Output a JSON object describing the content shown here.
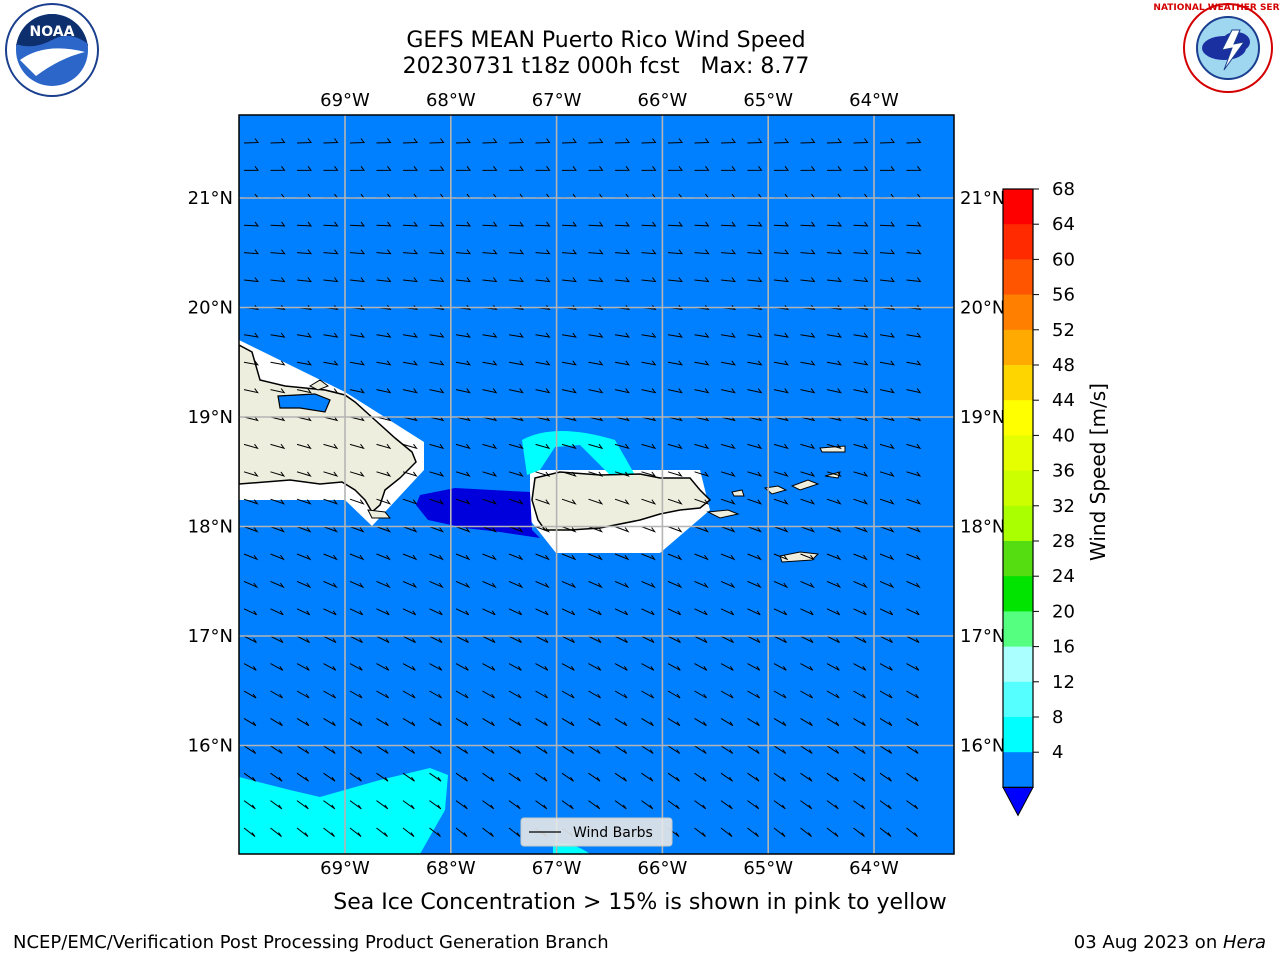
{
  "title": {
    "line1": "GEFS MEAN Puerto Rico Wind Speed",
    "line2": "20230731 t18z 000h fcst   Max: 8.77"
  },
  "map": {
    "lon_labels": [
      "69°W",
      "68°W",
      "67°W",
      "66°W",
      "65°W",
      "64°W"
    ],
    "lat_labels": [
      "21°N",
      "20°N",
      "19°N",
      "18°N",
      "17°N",
      "16°N"
    ],
    "lon_values": [
      -69,
      -68,
      -67,
      -66,
      -65,
      -64
    ],
    "lat_values": [
      21,
      20,
      19,
      18,
      17,
      16
    ],
    "ocean_color": "#0080ff",
    "land_color": "#eeeede",
    "legend_label": "Wind Barbs"
  },
  "colorbar": {
    "label": "Wind Speed [m/s]",
    "ticks": [
      "68",
      "64",
      "60",
      "56",
      "52",
      "48",
      "44",
      "40",
      "36",
      "32",
      "28",
      "24",
      "20",
      "16",
      "12",
      "8",
      "4"
    ],
    "colors": [
      "#ff0000",
      "#ff2a00",
      "#ff5500",
      "#ff8000",
      "#ffaa00",
      "#ffd500",
      "#ffff00",
      "#e6ff00",
      "#ccff00",
      "#aaff00",
      "#55dd11",
      "#00e400",
      "#55ff7f",
      "#aaffff",
      "#55ffff",
      "#00ffff",
      "#0080ff"
    ],
    "under_color": "#0000ff"
  },
  "caption": "Sea Ice Concentration > 15% is shown in pink to yellow",
  "footer": {
    "left": "NCEP/EMC/Verification Post Processing Product Generation Branch",
    "right_date": "03 Aug 2023 on ",
    "right_host": "Hera"
  },
  "logos": {
    "noaa_text": "NOAA",
    "nws_text": "NATIONAL WEATHER SERVICE"
  }
}
